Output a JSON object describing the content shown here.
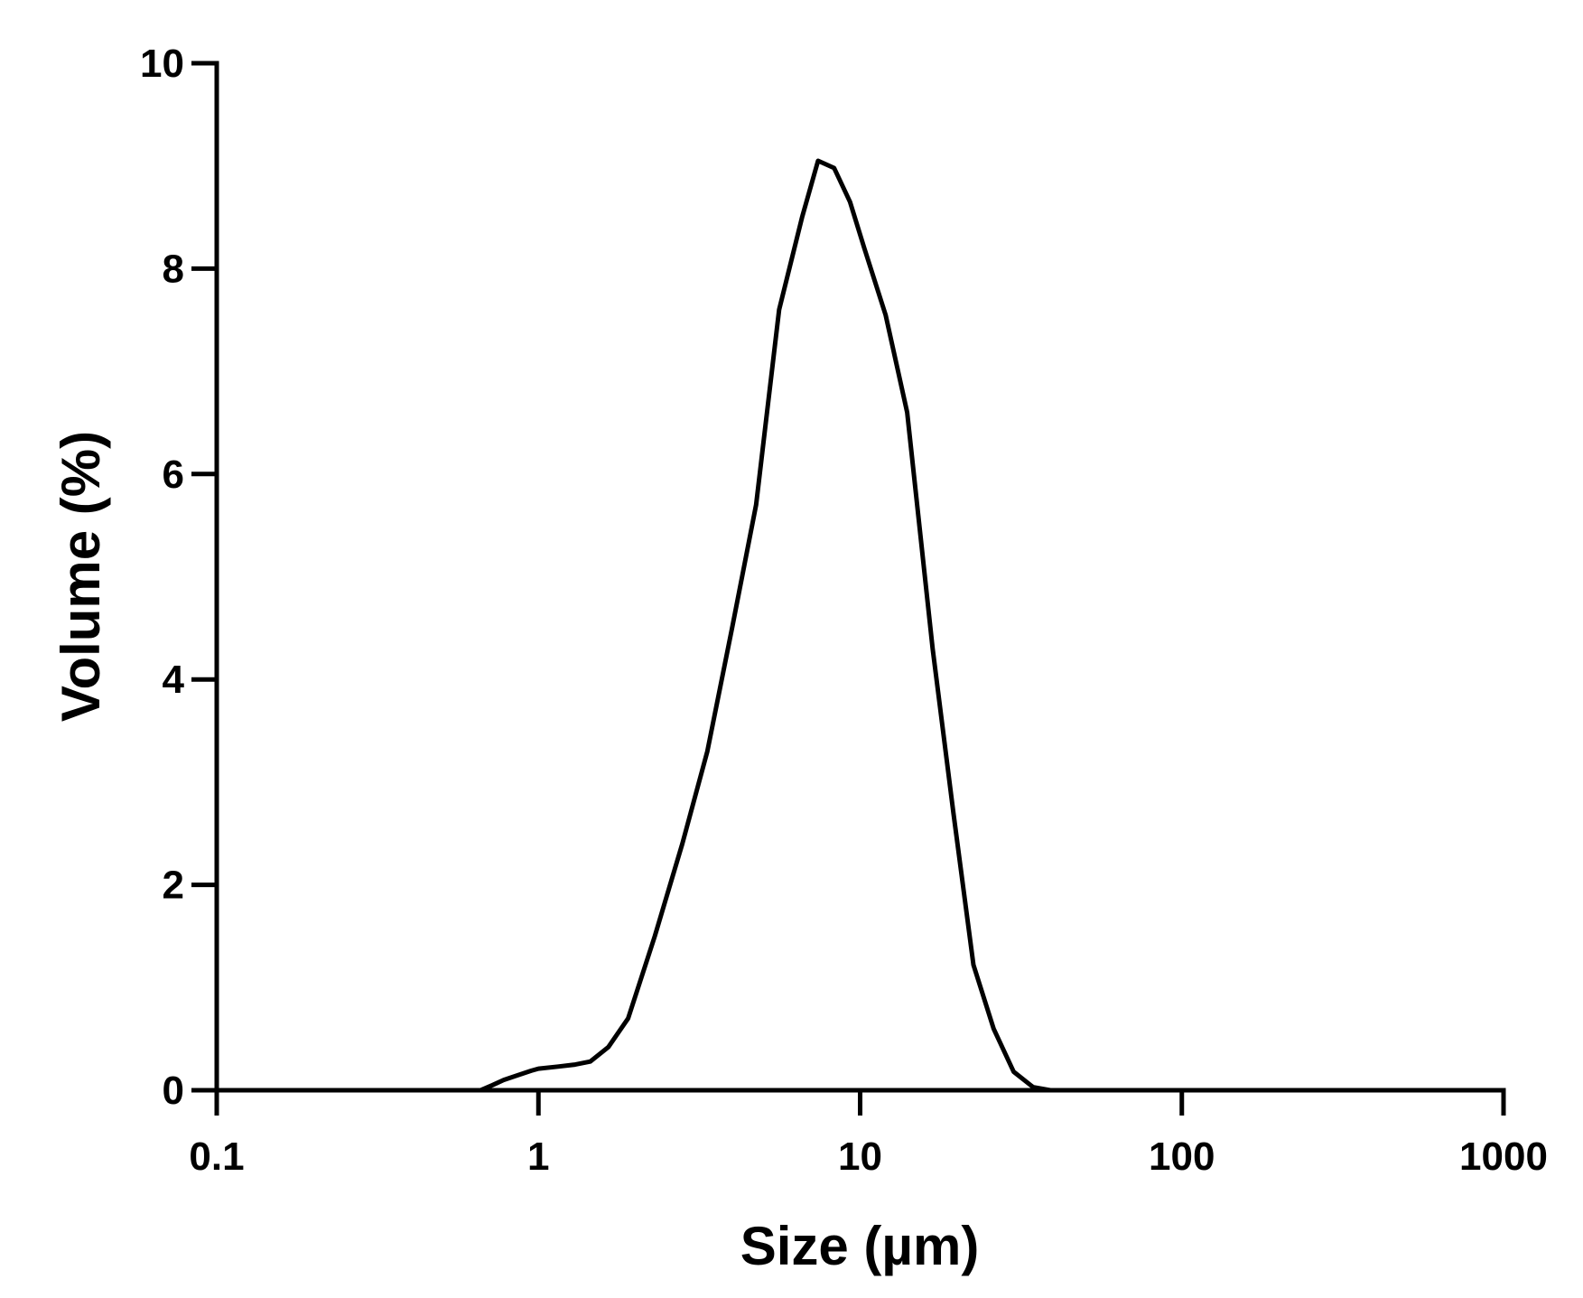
{
  "chart_data": {
    "type": "line",
    "title": "",
    "xlabel": "Size (µm)",
    "ylabel": "Volume (%)",
    "xscale": "log",
    "xlim": [
      0.1,
      1000
    ],
    "ylim": [
      0,
      10
    ],
    "xticks": [
      0.1,
      1,
      10,
      100,
      1000
    ],
    "xtick_labels": [
      "0.1",
      "1",
      "10",
      "100",
      "1000"
    ],
    "yticks": [
      0,
      2,
      4,
      6,
      8,
      10
    ],
    "ytick_labels": [
      "0",
      "2",
      "4",
      "6",
      "8",
      "10"
    ],
    "grid": false,
    "legend": "none",
    "line_color": "#000000",
    "series": [
      {
        "x": [
          0.1,
          0.5,
          0.66,
          0.72,
          0.78,
          0.85,
          0.95,
          1.0,
          1.15,
          1.3,
          1.45,
          1.65,
          1.9,
          2.3,
          2.8,
          3.35,
          4.0,
          4.75,
          5.6,
          6.6,
          7.4,
          8.3,
          9.3,
          10.3,
          12.0,
          14.0,
          16.8,
          19.5,
          22.5,
          26.0,
          30.0,
          34.5,
          39.0,
          45.0,
          100,
          1000
        ],
        "y": [
          0,
          0,
          0,
          0.05,
          0.1,
          0.14,
          0.19,
          0.21,
          0.23,
          0.25,
          0.28,
          0.42,
          0.7,
          1.5,
          2.4,
          3.3,
          4.5,
          5.7,
          7.6,
          8.5,
          9.05,
          8.98,
          8.65,
          8.2,
          7.55,
          6.6,
          4.3,
          2.7,
          1.22,
          0.6,
          0.18,
          0.03,
          0,
          0,
          0,
          0
        ]
      }
    ]
  }
}
